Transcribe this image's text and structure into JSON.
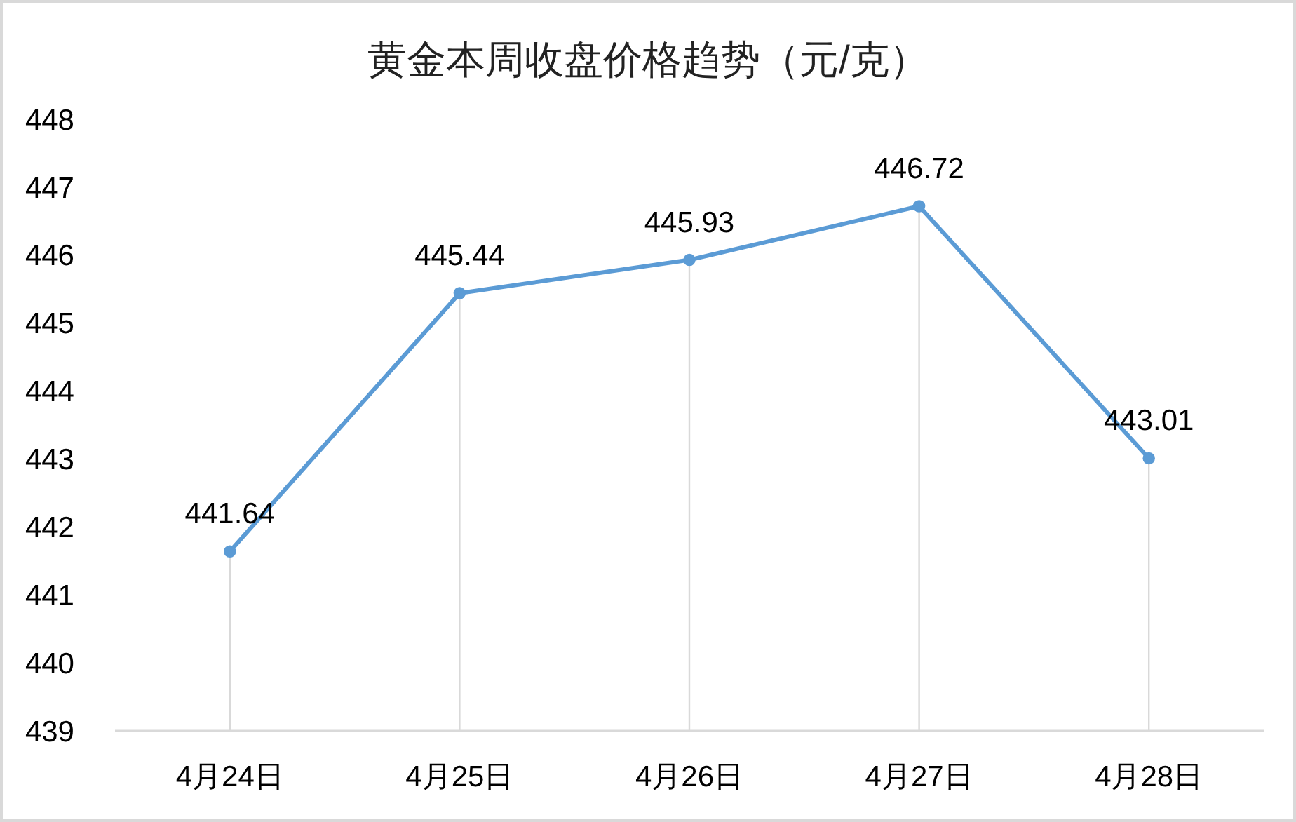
{
  "chart_data": {
    "type": "line",
    "title": "黄金本周收盘价格趋势（元/克）",
    "categories": [
      "4月24日",
      "4月25日",
      "4月26日",
      "4月27日",
      "4月28日"
    ],
    "series": [
      {
        "color": "#5b9bd5",
        "values": [
          441.64,
          445.44,
          445.93,
          446.72,
          443.01
        ]
      }
    ],
    "ylim": [
      439,
      448
    ],
    "yticks": [
      439,
      440,
      441,
      442,
      443,
      444,
      445,
      446,
      447,
      448
    ],
    "grid": "x",
    "marker": "circle",
    "line_style": "solid",
    "data_labels": true
  }
}
